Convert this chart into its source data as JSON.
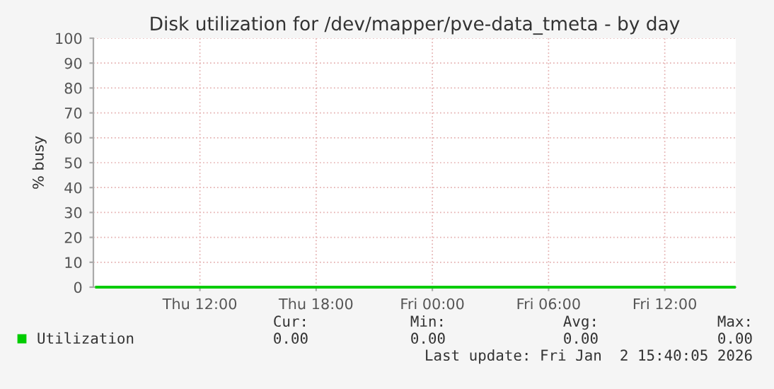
{
  "chart_data": {
    "type": "line",
    "title": "Disk utilization for /dev/mapper/pve-data_tmeta - by day",
    "ylabel": "% busy",
    "x": [
      "2026-01-01T06:40",
      "2026-01-02T15:35"
    ],
    "series": [
      {
        "name": "Utilization",
        "color": "#00cc00",
        "values": [
          0,
          0
        ]
      }
    ],
    "xlim": [
      "2026-01-01T06:30",
      "2026-01-02T15:40"
    ],
    "xticks": [
      {
        "value": "2026-01-01T12:00",
        "label": "Thu 12:00"
      },
      {
        "value": "2026-01-01T18:00",
        "label": "Thu 18:00"
      },
      {
        "value": "2026-01-02T00:00",
        "label": "Fri 00:00"
      },
      {
        "value": "2026-01-02T06:00",
        "label": "Fri 06:00"
      },
      {
        "value": "2026-01-02T12:00",
        "label": "Fri 12:00"
      }
    ],
    "ylim": [
      0,
      100
    ],
    "yticks": [
      0,
      10,
      20,
      30,
      40,
      50,
      60,
      70,
      80,
      90,
      100
    ],
    "grid": true,
    "legend": "bottom",
    "marker": "none",
    "line_style": "solid",
    "annotations": [
      "Cur:",
      "Min:",
      "Avg:",
      "Max:",
      "0.00",
      "0.00",
      "0.00",
      "0.00",
      "Last update: Fri Jan  2 15:40:05 2026"
    ]
  }
}
